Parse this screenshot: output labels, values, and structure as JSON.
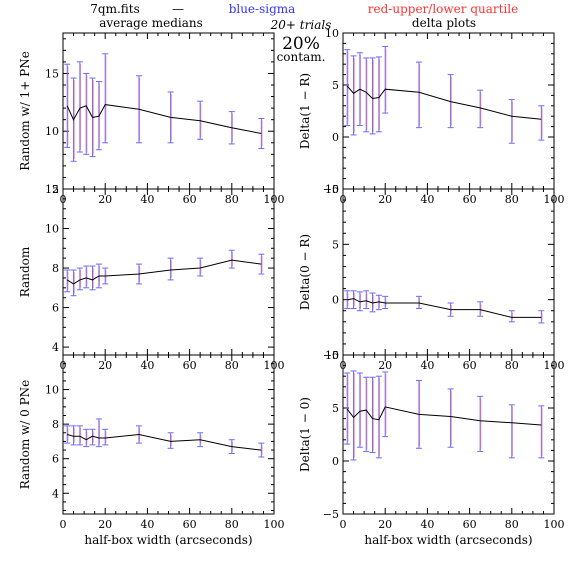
{
  "header": {
    "file": "7qm.fits",
    "dash": "—",
    "blue": "blue-sigma",
    "red": "red-upper/lower quartile",
    "left_title": "average medians",
    "right_title": "delta plots",
    "trials": "20+ trials",
    "percent": "20%",
    "contam": "contam."
  },
  "colors": {
    "line": "#000000",
    "sigma": "#6a6aff",
    "quartile": "#ff5a5a",
    "blue_text": "#3333ff",
    "red_text": "#ff3333"
  },
  "chart_data": [
    {
      "type": "line",
      "panel": "top-left",
      "ylabel": "Random w/ 1+ PNe",
      "xlabel": "",
      "xlim": [
        0,
        100
      ],
      "ylim": [
        5,
        18.5
      ],
      "xticks": [
        "0",
        "20",
        "40",
        "60",
        "80",
        "100"
      ],
      "yticks": [
        "5",
        "10",
        "15"
      ],
      "x": [
        2,
        5,
        8,
        11,
        14,
        17,
        20,
        36,
        51,
        65,
        80,
        94
      ],
      "y": [
        12.2,
        11.0,
        12.0,
        12.2,
        11.2,
        11.3,
        12.3,
        11.9,
        11.2,
        10.9,
        10.3,
        9.8
      ],
      "ylo": [
        8.6,
        7.4,
        8.2,
        8.0,
        7.8,
        8.4,
        9.0,
        9.0,
        9.0,
        9.3,
        8.9,
        8.5
      ],
      "yhi": [
        15.8,
        14.6,
        16.0,
        15.0,
        14.6,
        14.3,
        16.7,
        14.8,
        13.4,
        12.6,
        11.7,
        11.1
      ]
    },
    {
      "type": "line",
      "panel": "top-right",
      "ylabel": "Delta(1 − R)",
      "xlabel": "",
      "xlim": [
        0,
        100
      ],
      "ylim": [
        -5,
        10
      ],
      "xticks": [
        "0",
        "20",
        "40",
        "60",
        "80",
        "100"
      ],
      "yticks": [
        "−5",
        "0",
        "5",
        "10"
      ],
      "x": [
        2,
        5,
        8,
        11,
        14,
        17,
        20,
        36,
        51,
        65,
        80,
        94
      ],
      "y": [
        4.9,
        4.2,
        4.6,
        4.3,
        3.7,
        3.8,
        4.6,
        4.3,
        3.4,
        2.8,
        2.0,
        1.7
      ],
      "ylo": [
        1.1,
        0.2,
        1.1,
        0.5,
        0.3,
        0.5,
        2.3,
        0.9,
        0.9,
        0.9,
        -0.6,
        -0.3
      ],
      "yhi": [
        8.4,
        7.8,
        8.1,
        7.6,
        7.6,
        7.7,
        8.7,
        7.2,
        6.0,
        4.5,
        3.6,
        3.0
      ]
    },
    {
      "type": "line",
      "panel": "middle-left",
      "ylabel": "Random",
      "xlabel": "",
      "xlim": [
        0,
        100
      ],
      "ylim": [
        3.6,
        12
      ],
      "xticks": [
        "0",
        "20",
        "40",
        "60",
        "80",
        "100"
      ],
      "yticks": [
        "4",
        "6",
        "8",
        "10",
        "12"
      ],
      "x": [
        2,
        5,
        8,
        11,
        14,
        17,
        20,
        36,
        51,
        65,
        80,
        94
      ],
      "y": [
        7.4,
        7.2,
        7.4,
        7.5,
        7.4,
        7.6,
        7.6,
        7.7,
        7.9,
        8.0,
        8.4,
        8.2
      ],
      "ylo": [
        6.8,
        6.6,
        6.9,
        7.0,
        6.9,
        7.0,
        7.2,
        7.2,
        7.4,
        7.6,
        8.0,
        7.7
      ],
      "yhi": [
        7.9,
        7.9,
        8.0,
        8.1,
        8.1,
        8.2,
        8.0,
        8.2,
        8.5,
        8.5,
        8.9,
        8.7
      ]
    },
    {
      "type": "line",
      "panel": "middle-right",
      "ylabel": "Delta(0 − R)",
      "xlabel": "",
      "xlim": [
        0,
        100
      ],
      "ylim": [
        -5,
        10
      ],
      "xticks": [
        "0",
        "20",
        "40",
        "60",
        "80",
        "100"
      ],
      "yticks": [
        "−5",
        "0",
        "5",
        "10"
      ],
      "x": [
        2,
        5,
        8,
        11,
        14,
        17,
        20,
        36,
        51,
        65,
        80,
        94
      ],
      "y": [
        0.0,
        0.1,
        -0.2,
        -0.1,
        -0.3,
        -0.2,
        -0.3,
        -0.3,
        -0.9,
        -0.9,
        -1.6,
        -1.6
      ],
      "ylo": [
        -0.8,
        -0.8,
        -1.0,
        -0.8,
        -1.1,
        -0.9,
        -0.8,
        -0.8,
        -1.5,
        -1.5,
        -2.0,
        -2.1
      ],
      "yhi": [
        0.8,
        0.8,
        0.7,
        0.8,
        0.6,
        0.4,
        0.3,
        0.3,
        -0.3,
        -0.2,
        -1.0,
        -1.0
      ]
    },
    {
      "type": "line",
      "panel": "bottom-left",
      "ylabel": "Random w/ 0 PNe",
      "xlabel": "half-box width (arcseconds)",
      "xlim": [
        0,
        100
      ],
      "ylim": [
        2.8,
        12
      ],
      "xticks": [
        "0",
        "20",
        "40",
        "60",
        "80",
        "100"
      ],
      "yticks": [
        "4",
        "6",
        "8",
        "10"
      ],
      "x": [
        2,
        5,
        8,
        11,
        14,
        17,
        20,
        36,
        51,
        65,
        80,
        94
      ],
      "y": [
        7.4,
        7.3,
        7.3,
        7.1,
        7.3,
        7.2,
        7.2,
        7.4,
        7.0,
        7.1,
        6.7,
        6.5
      ],
      "ylo": [
        6.9,
        6.8,
        6.8,
        6.7,
        6.8,
        6.7,
        6.8,
        6.9,
        6.6,
        6.7,
        6.3,
        6.1
      ],
      "yhi": [
        7.9,
        7.9,
        7.9,
        7.7,
        7.7,
        8.3,
        7.7,
        7.9,
        7.5,
        7.5,
        7.1,
        6.9
      ]
    },
    {
      "type": "line",
      "panel": "bottom-right",
      "ylabel": "Delta(1 − 0)",
      "xlabel": "half-box width (arcseconds)",
      "xlim": [
        0,
        100
      ],
      "ylim": [
        -5,
        10
      ],
      "xticks": [
        "0",
        "20",
        "40",
        "60",
        "80",
        "100"
      ],
      "yticks": [
        "−5",
        "0",
        "5",
        "10"
      ],
      "x": [
        2,
        5,
        8,
        11,
        14,
        17,
        20,
        36,
        51,
        65,
        80,
        94
      ],
      "y": [
        4.9,
        4.1,
        4.7,
        4.8,
        4.0,
        3.9,
        5.1,
        4.4,
        4.2,
        3.8,
        3.6,
        3.4
      ],
      "ylo": [
        1.6,
        0.1,
        1.3,
        0.9,
        0.8,
        0.3,
        2.3,
        1.2,
        1.3,
        0.9,
        0.3,
        0.3
      ],
      "yhi": [
        8.3,
        8.5,
        8.3,
        7.9,
        7.9,
        8.0,
        8.4,
        7.6,
        6.8,
        6.1,
        5.3,
        5.2
      ]
    }
  ]
}
